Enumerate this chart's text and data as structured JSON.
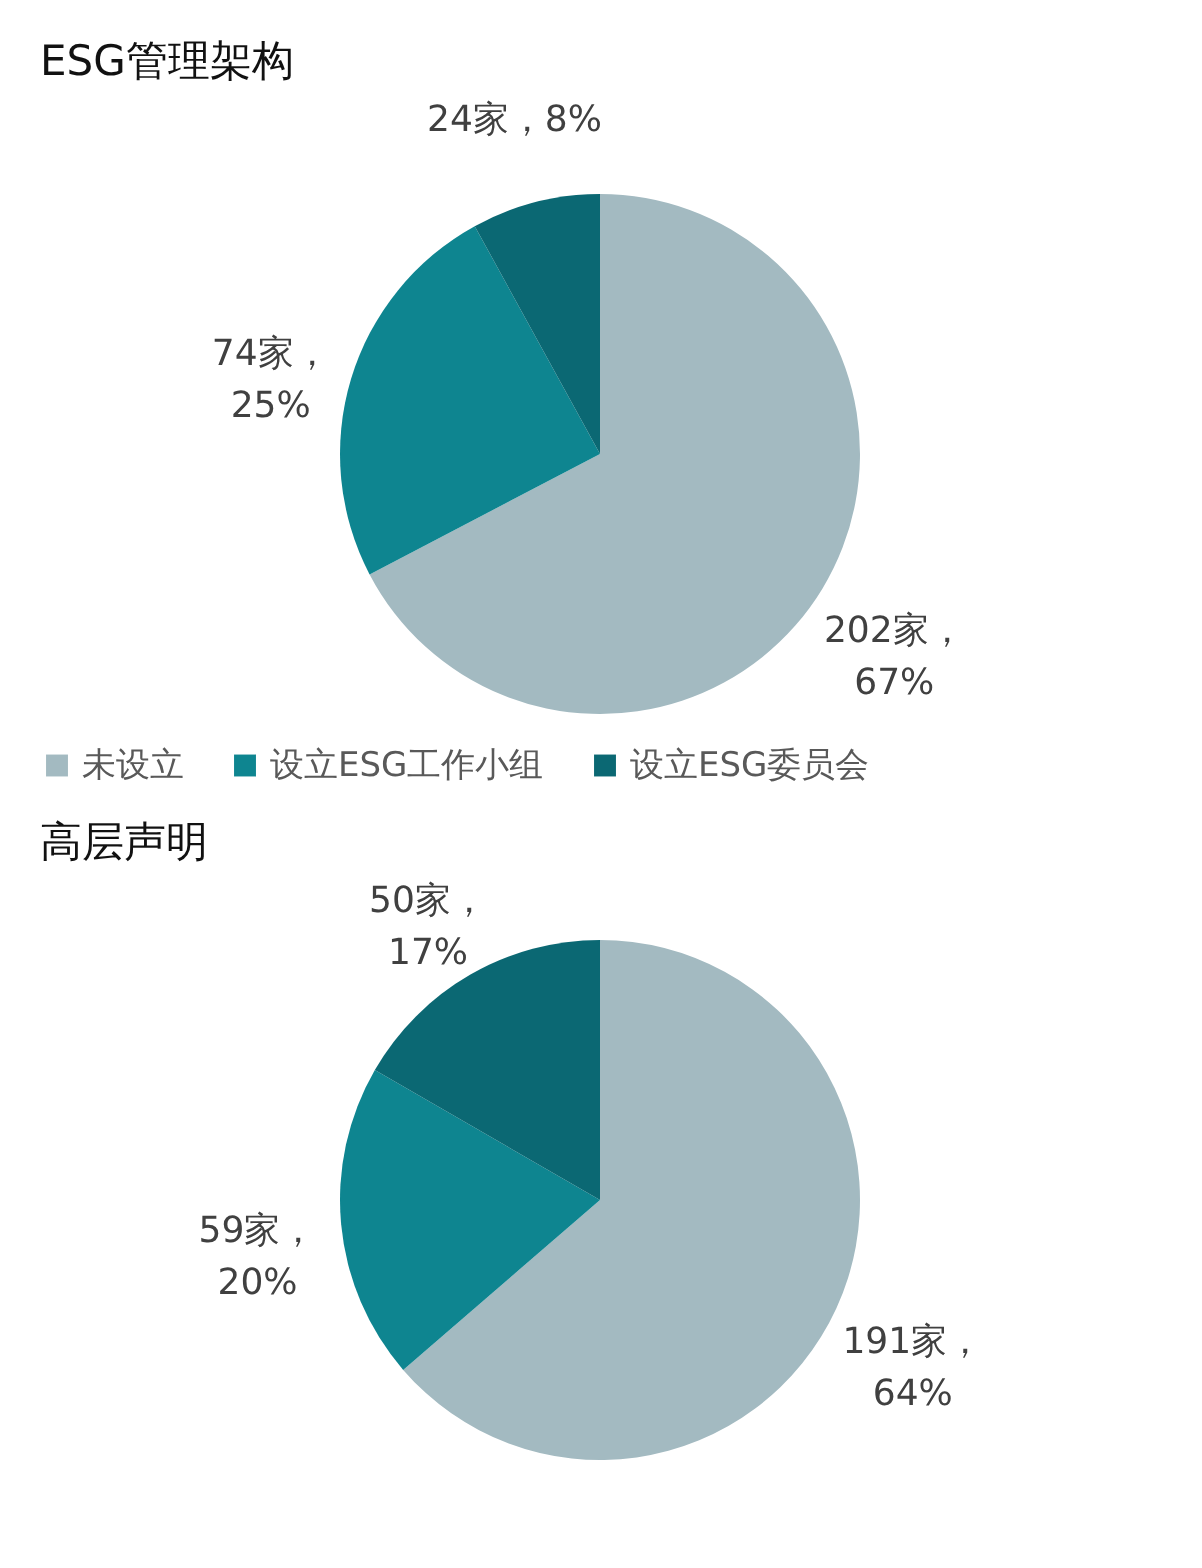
{
  "chart_data": [
    {
      "type": "pie",
      "title": "ESG管理架构",
      "categories": [
        "未设立",
        "设立ESG工作小组",
        "设立ESG委员会"
      ],
      "values": [
        202,
        74,
        24
      ],
      "colors": [
        "#a3bac1",
        "#0e8590",
        "#0b6873"
      ],
      "value_labels": [
        "202家，67%",
        "74家，25%",
        "24家，8%"
      ],
      "legend": "bottom"
    },
    {
      "type": "pie",
      "title": "高层声明",
      "categories": [
        null,
        null,
        null
      ],
      "values": [
        191,
        59,
        50
      ],
      "colors": [
        "#a3bac1",
        "#0e8590",
        "#0b6873"
      ],
      "value_labels": [
        "191家，64%",
        "59家，20%",
        "50家，17%"
      ],
      "legend": false
    }
  ]
}
